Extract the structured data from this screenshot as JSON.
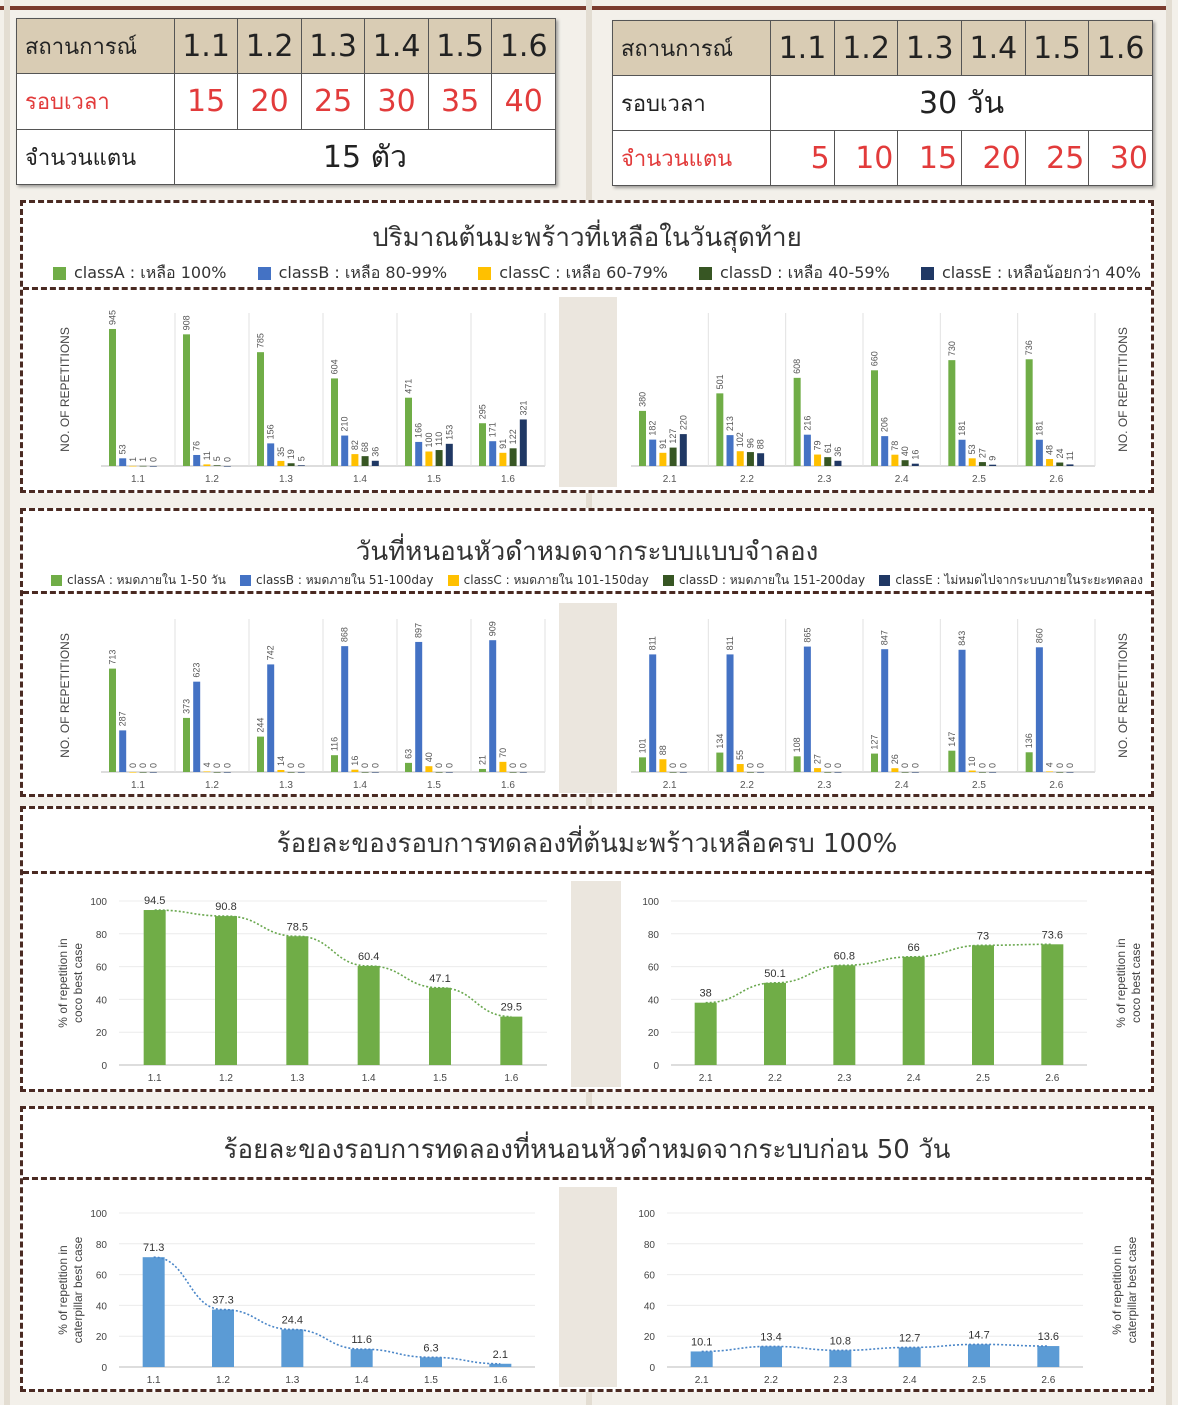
{
  "table_left": {
    "headers": [
      "สถานการณ์",
      "1.1",
      "1.2",
      "1.3",
      "1.4",
      "1.5",
      "1.6"
    ],
    "row2_label": "รอบเวลา",
    "row2_values": [
      "15",
      "20",
      "25",
      "30",
      "35",
      "40"
    ],
    "row3_label": "จำนวนแตน",
    "row3_value": "15 ตัว"
  },
  "table_right": {
    "headers": [
      "สถานการณ์",
      "1.1",
      "1.2",
      "1.3",
      "1.4",
      "1.5",
      "1.6"
    ],
    "row2_label": "รอบเวลา",
    "row2_value": "30 วัน",
    "row3_label": "จำนวนแตน",
    "row3_values": [
      "5",
      "10",
      "15",
      "20",
      "25",
      "30"
    ]
  },
  "colors": {
    "classA": "#70ad47",
    "classB": "#4472c4",
    "classC": "#ffc000",
    "classD": "#375623",
    "classE": "#203864",
    "line_blue": "#5b9bd5"
  },
  "panel1": {
    "title": "ปริมาณต้นมะพร้าวที่เหลือในวันสุดท้าย",
    "legend": [
      "classA : เหลือ 100%",
      "classB : เหลือ 80-99%",
      "classC : เหลือ 60-79%",
      "classD : เหลือ 40-59%",
      "classE :  เหลือน้อยกว่า 40%"
    ]
  },
  "panel2": {
    "title": "วันที่หนอนหัวดำหมดจากระบบแบบจำลอง",
    "legend": [
      "classA : หมดภายใน 1-50 วัน",
      "classB : หมดภายใน 51-100day",
      "classC : หมดภายใน 101-150day",
      "classD : หมดภายใน 151-200day",
      "classE : ไม่หมดไปจากระบบภายในระยะทดลอง"
    ]
  },
  "panel3": {
    "title": "ร้อยละของรอบการทดลองที่ต้นมะพร้าวเหลือครบ 100%"
  },
  "panel4": {
    "title": "ร้อยละของรอบการทดลองที่หนอนหัวดำหมดจากระบบก่อน 50 วัน"
  },
  "chart_data": [
    {
      "type": "bar",
      "title": "",
      "ylabel": "NO. OF REPETITIONS",
      "ylim": [
        0,
        1000
      ],
      "categories": [
        "1.1",
        "1.2",
        "1.3",
        "1.4",
        "1.5",
        "1.6"
      ],
      "series": [
        {
          "name": "classA : เหลือ 100%",
          "values": [
            945,
            908,
            785,
            604,
            471,
            295
          ]
        },
        {
          "name": "classB : เหลือ 80-99%",
          "values": [
            53,
            76,
            156,
            210,
            166,
            171
          ]
        },
        {
          "name": "classC : เหลือ 60-79%",
          "values": [
            1,
            11,
            35,
            82,
            100,
            91
          ]
        },
        {
          "name": "classD : เหลือ 40-59%",
          "values": [
            1,
            5,
            19,
            68,
            110,
            122
          ]
        },
        {
          "name": "classE :  เหลือน้อยกว่า 40%",
          "values": [
            0,
            0,
            5,
            36,
            153,
            321
          ]
        }
      ]
    },
    {
      "type": "bar",
      "title": "",
      "ylabel": "NO. OF REPETITIONS",
      "ylim": [
        0,
        1000
      ],
      "categories": [
        "2.1",
        "2.2",
        "2.3",
        "2.4",
        "2.5",
        "2.6"
      ],
      "series": [
        {
          "name": "classA : เหลือ 100%",
          "values": [
            380,
            501,
            608,
            660,
            730,
            736
          ]
        },
        {
          "name": "classB : เหลือ 80-99%",
          "values": [
            182,
            213,
            216,
            206,
            181,
            181
          ]
        },
        {
          "name": "classC : เหลือ 60-79%",
          "values": [
            91,
            102,
            79,
            78,
            53,
            48
          ]
        },
        {
          "name": "classD : เหลือ 40-59%",
          "values": [
            127,
            96,
            61,
            40,
            27,
            24
          ]
        },
        {
          "name": "classE :  เหลือน้อยกว่า 40%",
          "values": [
            220,
            88,
            36,
            16,
            9,
            11
          ]
        }
      ]
    },
    {
      "type": "bar",
      "title": "",
      "ylabel": "NO. OF REPETITIONS",
      "ylim": [
        0,
        1000
      ],
      "categories": [
        "1.1",
        "1.2",
        "1.3",
        "1.4",
        "1.5",
        "1.6"
      ],
      "series": [
        {
          "name": "classA : หมดภายใน 1-50 วัน",
          "values": [
            713,
            373,
            244,
            116,
            63,
            21
          ]
        },
        {
          "name": "classB : หมดภายใน 51-100day",
          "values": [
            287,
            623,
            742,
            868,
            897,
            909
          ]
        },
        {
          "name": "classC : หมดภายใน 101-150day",
          "values": [
            0,
            4,
            14,
            16,
            40,
            70
          ]
        },
        {
          "name": "classD : หมดภายใน 151-200day",
          "values": [
            0,
            0,
            0,
            0,
            0,
            0
          ]
        },
        {
          "name": "classE : ไม่หมดไปจากระบบภายในระยะทดลอง",
          "values": [
            0,
            0,
            0,
            0,
            0,
            0
          ]
        }
      ]
    },
    {
      "type": "bar",
      "title": "",
      "ylabel": "NO. OF REPETITIONS",
      "ylim": [
        0,
        1000
      ],
      "categories": [
        "2.1",
        "2.2",
        "2.3",
        "2.4",
        "2.5",
        "2.6"
      ],
      "series": [
        {
          "name": "classA : หมดภายใน 1-50 วัน",
          "values": [
            101,
            134,
            108,
            127,
            147,
            136
          ]
        },
        {
          "name": "classB : หมดภายใน 51-100day",
          "values": [
            811,
            811,
            865,
            847,
            843,
            860
          ]
        },
        {
          "name": "classC : หมดภายใน 101-150day",
          "values": [
            88,
            55,
            27,
            26,
            10,
            4
          ]
        },
        {
          "name": "classD : หมดภายใน 151-200day",
          "values": [
            0,
            0,
            0,
            0,
            0,
            0
          ]
        },
        {
          "name": "classE : ไม่หมดไปจากระบบภายในระยะทดลอง",
          "values": [
            0,
            0,
            0,
            0,
            0,
            0
          ]
        }
      ]
    },
    {
      "type": "bar",
      "title": "",
      "ylabel": "% of repetition in coco best case",
      "ylim": [
        0,
        100
      ],
      "yticks": [
        0,
        20,
        40,
        60,
        80,
        100
      ],
      "trendline": "dotted",
      "categories": [
        "1.1",
        "1.2",
        "1.3",
        "1.4",
        "1.5",
        "1.6"
      ],
      "values": [
        94.5,
        90.8,
        78.5,
        60.4,
        47.1,
        29.5
      ]
    },
    {
      "type": "bar",
      "title": "",
      "ylabel": "% of repetition in coco best case",
      "ylim": [
        0,
        100
      ],
      "yticks": [
        0,
        20,
        40,
        60,
        80,
        100
      ],
      "trendline": "dotted",
      "categories": [
        "2.1",
        "2.2",
        "2.3",
        "2.4",
        "2.5",
        "2.6"
      ],
      "values": [
        38,
        50.1,
        60.8,
        66,
        73,
        73.6
      ]
    },
    {
      "type": "bar",
      "title": "",
      "ylabel": "% of repetition in caterpillar best case",
      "ylim": [
        0,
        100
      ],
      "yticks": [
        0,
        20,
        40,
        60,
        80,
        100
      ],
      "trendline": "dotted",
      "categories": [
        "1.1",
        "1.2",
        "1.3",
        "1.4",
        "1.5",
        "1.6"
      ],
      "values": [
        71.3,
        37.3,
        24.4,
        11.6,
        6.3,
        2.1
      ]
    },
    {
      "type": "bar",
      "title": "",
      "ylabel": "% of repetition in caterpillar best case",
      "ylim": [
        0,
        100
      ],
      "yticks": [
        0,
        20,
        40,
        60,
        80,
        100
      ],
      "trendline": "dotted",
      "categories": [
        "2.1",
        "2.2",
        "2.3",
        "2.4",
        "2.5",
        "2.6"
      ],
      "values": [
        10.1,
        13.4,
        10.8,
        12.7,
        14.7,
        13.6
      ]
    }
  ]
}
